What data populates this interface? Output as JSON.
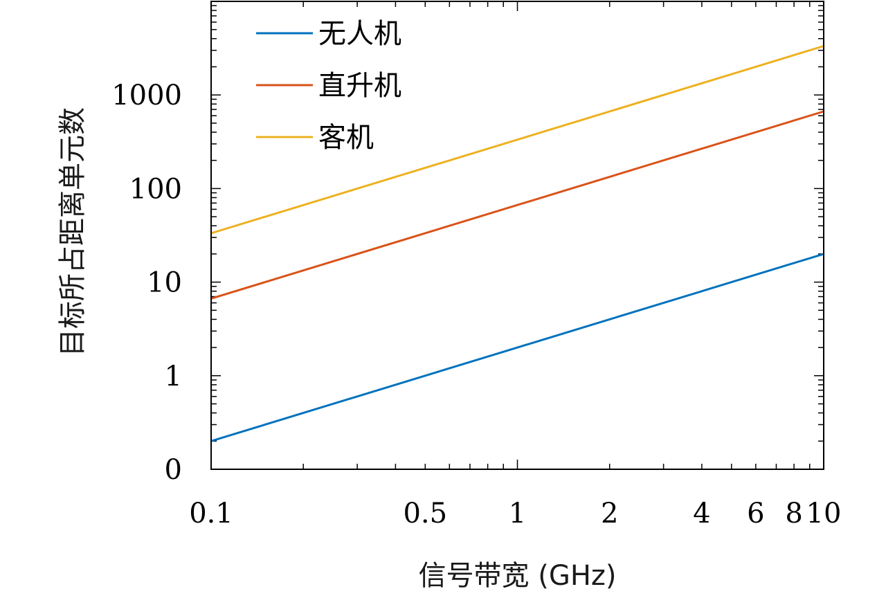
{
  "chart_data": {
    "type": "line",
    "xlabel": "信号带宽 (GHz)",
    "ylabel": "目标所占距离单元数",
    "x_scale": "log",
    "y_scale": "log",
    "xlim": [
      0.1,
      10
    ],
    "ylim": [
      0.1,
      10000
    ],
    "x_ticks": [
      {
        "value": 0.1,
        "label": "0.1"
      },
      {
        "value": 0.5,
        "label": "0.5"
      },
      {
        "value": 1,
        "label": "1"
      },
      {
        "value": 2,
        "label": "2"
      },
      {
        "value": 4,
        "label": "4"
      },
      {
        "value": 6,
        "label": "6"
      },
      {
        "value": 8,
        "label": "8"
      },
      {
        "value": 10,
        "label": "10"
      }
    ],
    "y_ticks": [
      {
        "value": 0.1,
        "label": "0"
      },
      {
        "value": 1,
        "label": "1"
      },
      {
        "value": 10,
        "label": "10"
      },
      {
        "value": 100,
        "label": "100"
      },
      {
        "value": 1000,
        "label": "1000"
      }
    ],
    "grid": false,
    "legend_position": "top-left",
    "series": [
      {
        "name": "无人机",
        "color": "#0072BD",
        "x": [
          0.1,
          10
        ],
        "y": [
          0.2,
          20
        ]
      },
      {
        "name": "直升机",
        "color": "#D95319",
        "x": [
          0.1,
          10
        ],
        "y": [
          6.67,
          667
        ]
      },
      {
        "name": "客机",
        "color": "#EDB120",
        "x": [
          0.1,
          10
        ],
        "y": [
          33.3,
          3333
        ]
      }
    ]
  }
}
